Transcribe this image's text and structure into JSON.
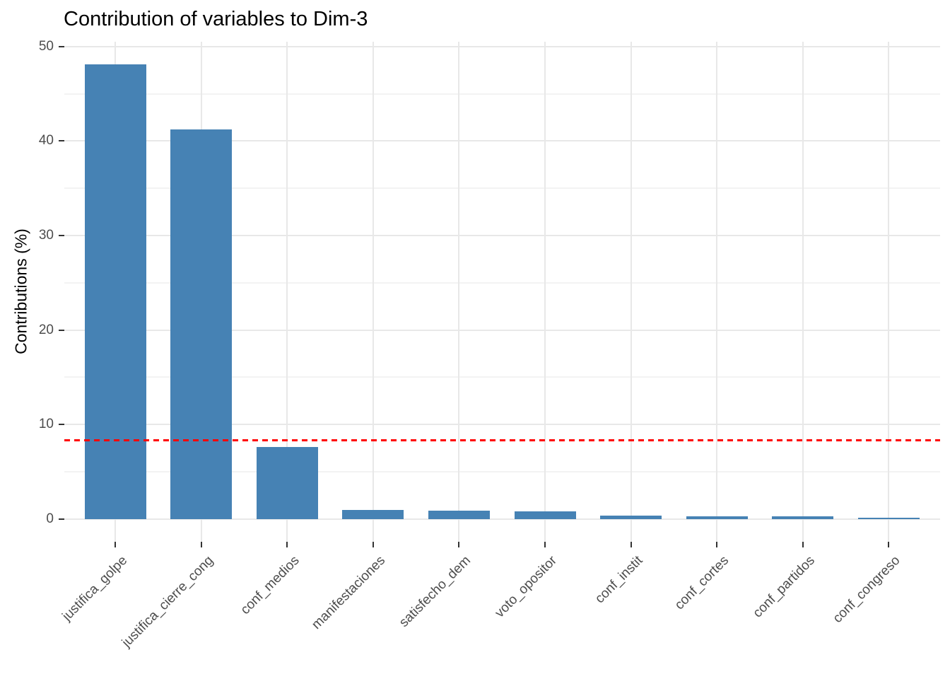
{
  "chart_data": {
    "type": "bar",
    "title": "Contribution of variables to Dim-3",
    "xlabel": "",
    "ylabel": "Contributions (%)",
    "categories": [
      "justifica_golpe",
      "justifica_cierre_cong",
      "conf_medios",
      "manifestaciones",
      "satisfecho_dem",
      "voto_opositor",
      "conf_instit",
      "conf_cortes",
      "conf_partidos",
      "conf_congreso"
    ],
    "values": [
      48.1,
      41.2,
      7.6,
      1.0,
      0.9,
      0.85,
      0.35,
      0.3,
      0.3,
      0.12
    ],
    "yticks": [
      0,
      10,
      20,
      30,
      40,
      50
    ],
    "yticks_minor": [
      5,
      15,
      25,
      35,
      45
    ],
    "ylim": [
      -2.4,
      50.5
    ],
    "grid": true,
    "legend": false,
    "x_label_rotation": 45,
    "reference_line": {
      "value": 8.33,
      "style": "dashed"
    }
  },
  "colors": {
    "bar_fill": "#4682B4",
    "reference_line": "#FF0000",
    "grid_major": "#E8E8E8",
    "grid_minor": "#F3F3F3",
    "axis_text": "#4D4D4D",
    "tick_mark": "#333333",
    "title_text": "#000000",
    "background": "#FFFFFF"
  }
}
